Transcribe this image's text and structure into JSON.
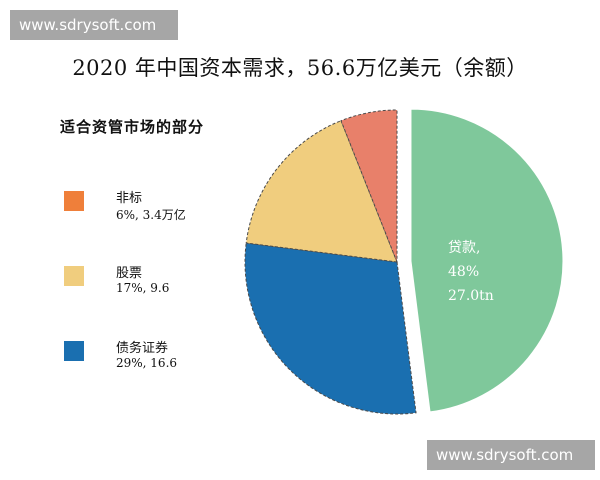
{
  "watermark": {
    "top": "www.sdrysoft.com",
    "bottom": "www.sdrysoft.com"
  },
  "chart_data": {
    "type": "pie",
    "title": "2020 年中国资本需求，56.6万亿美元（余额）",
    "subtitle": "适合资管市场的部分",
    "slices": [
      {
        "name": "贷款",
        "percent": 48,
        "value": 27.0,
        "value_text": "27.0tn",
        "color": "#7fc89b",
        "exploded": true
      },
      {
        "name": "债务证券",
        "percent": 29,
        "value": 16.6,
        "value_text": "29%, 16.6",
        "color": "#1a6fb0",
        "exploded": false
      },
      {
        "name": "股票",
        "percent": 17,
        "value": 9.6,
        "value_text": "17%, 9.6",
        "color": "#f0cd7e",
        "exploded": false
      },
      {
        "name": "非标",
        "percent": 6,
        "value": 3.4,
        "value_text": "6%, 3.4万亿",
        "color": "#e8806a",
        "exploded": false
      }
    ],
    "legend": [
      {
        "name": "非标",
        "value_text": "6%, 3.4万亿",
        "color": "#ef7f3a"
      },
      {
        "name": "股票",
        "value_text": "17%, 9.6",
        "color": "#f0cd7e"
      },
      {
        "name": "债务证券",
        "value_text": "29%, 16.6",
        "color": "#1a6fb0"
      }
    ],
    "slice_label": {
      "line1": "贷款,",
      "line2": "48%",
      "line3": "27.0tn"
    },
    "legend_placement": "left"
  }
}
